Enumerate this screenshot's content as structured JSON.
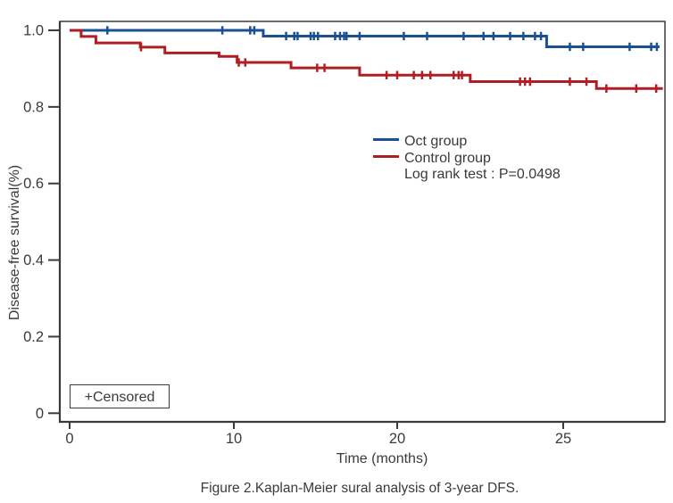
{
  "figure": {
    "caption": "Figure 2.Kaplan-Meier sural analysis of 3-year DFS.",
    "censored_note": "+Censored",
    "background_color": "#ffffff",
    "axis_color": "#3a3a3a"
  },
  "chart_data": {
    "type": "line",
    "subtype": "kaplan_meier_step_function",
    "title": "",
    "xlabel": "Time (months)",
    "ylabel": "Disease-free survival(%)",
    "xlim": [
      0,
      28
    ],
    "ylim": [
      0,
      1.0
    ],
    "grid": false,
    "legend_position": "inside-center-right",
    "x_ticks": [
      {
        "label": "0",
        "month": 0
      },
      {
        "label": "10",
        "month": 10
      },
      {
        "label": "20",
        "month": 20
      },
      {
        "label": "25",
        "month": 25
      }
    ],
    "y_ticks": [
      {
        "label": "1.0",
        "value": 1.0
      },
      {
        "label": "0.8",
        "value": 0.8
      },
      {
        "label": "0.6",
        "value": 0.6
      },
      {
        "label": "0.4",
        "value": 0.4
      },
      {
        "label": "0.2",
        "value": 0.2
      },
      {
        "label": "0",
        "value": 0.0
      }
    ],
    "annotations": {
      "log_rank": "Log rank test : P=0.0498"
    },
    "series": [
      {
        "name": "Oct group",
        "color": "#1b5191",
        "steps": [
          {
            "t": 0,
            "s": 1.0
          },
          {
            "t": 11.8,
            "s": 0.985
          },
          {
            "t": 24.5,
            "s": 0.957
          }
        ],
        "end_time": 27.9,
        "censor_times": [
          2.3,
          9.3,
          11.0,
          11.25,
          13.2,
          13.7,
          13.9,
          14.7,
          14.9,
          15.15,
          16.2,
          16.5,
          16.75,
          16.9,
          17.7,
          20.2,
          20.9,
          22.0,
          22.6,
          22.9,
          23.4,
          23.8,
          24.15,
          24.33,
          25.2,
          25.6,
          27.0,
          27.65,
          27.82
        ]
      },
      {
        "name": "Control group",
        "color": "#b01e23",
        "steps": [
          {
            "t": 0,
            "s": 1.0
          },
          {
            "t": 0.7,
            "s": 0.984
          },
          {
            "t": 1.6,
            "s": 0.967
          },
          {
            "t": 4.3,
            "s": 0.956
          },
          {
            "t": 5.8,
            "s": 0.941
          },
          {
            "t": 9.1,
            "s": 0.932
          },
          {
            "t": 10.2,
            "s": 0.916
          },
          {
            "t": 13.5,
            "s": 0.902
          },
          {
            "t": 17.7,
            "s": 0.883
          },
          {
            "t": 22.2,
            "s": 0.866
          },
          {
            "t": 26.0,
            "s": 0.848
          }
        ],
        "end_time": 28.0,
        "censor_times": [
          4.35,
          10.3,
          10.7,
          15.1,
          15.55,
          19.35,
          20.0,
          20.5,
          20.75,
          21.0,
          21.7,
          21.85,
          21.95,
          23.7,
          23.85,
          24.0,
          25.2,
          25.7,
          26.3,
          27.2,
          27.8
        ]
      }
    ]
  }
}
